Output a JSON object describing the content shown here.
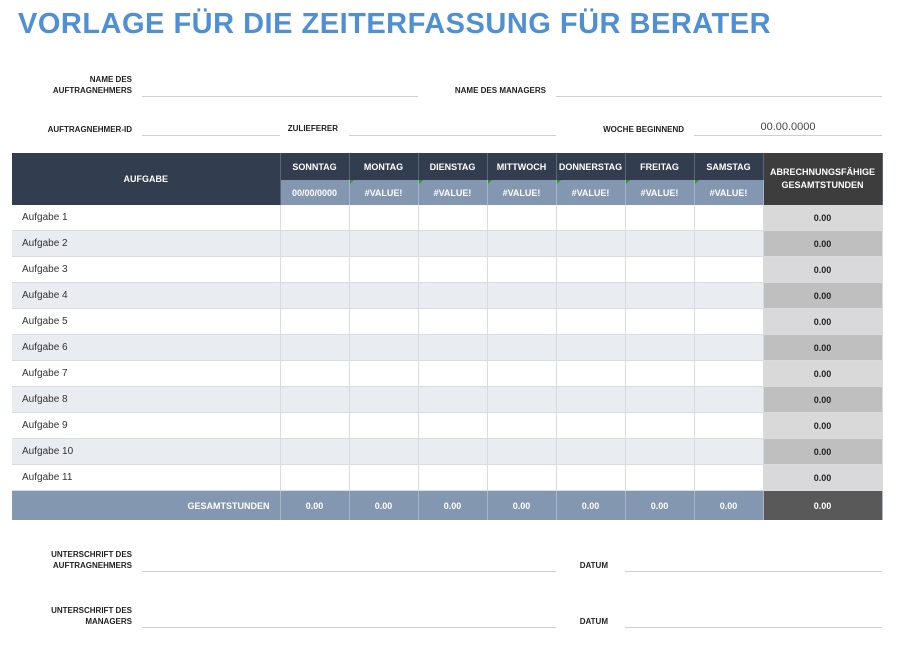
{
  "title": "VORLAGE FÜR DIE ZEITERFASSUNG FÜR BERATER",
  "fields": {
    "contractor_name_label": "NAME DES AUFTRAGNEHMERS",
    "manager_name_label": "NAME DES MANAGERS",
    "contractor_id_label": "AUFTRAGNEHMER-ID",
    "supplier_label": "ZULIEFERER",
    "week_start_label": "WOCHE BEGINNEND",
    "week_start_value": "00.00.0000"
  },
  "table": {
    "task_header": "AUFGABE",
    "total_header": "ABRECHNUNGSFÄHIGE GESAMTSTUNDEN",
    "days": [
      {
        "name": "SONNTAG",
        "date": "00/00/0000"
      },
      {
        "name": "MONTAG",
        "date": "#VALUE!"
      },
      {
        "name": "DIENSTAG",
        "date": "#VALUE!"
      },
      {
        "name": "MITTWOCH",
        "date": "#VALUE!"
      },
      {
        "name": "DONNERSTAG",
        "date": "#VALUE!"
      },
      {
        "name": "FREITAG",
        "date": "#VALUE!"
      },
      {
        "name": "SAMSTAG",
        "date": "#VALUE!"
      }
    ],
    "rows": [
      {
        "task": "Aufgabe 1",
        "total": "0.00"
      },
      {
        "task": "Aufgabe 2",
        "total": "0.00"
      },
      {
        "task": "Aufgabe 3",
        "total": "0.00"
      },
      {
        "task": "Aufgabe 4",
        "total": "0.00"
      },
      {
        "task": "Aufgabe 5",
        "total": "0.00"
      },
      {
        "task": "Aufgabe 6",
        "total": "0.00"
      },
      {
        "task": "Aufgabe 7",
        "total": "0.00"
      },
      {
        "task": "Aufgabe 8",
        "total": "0.00"
      },
      {
        "task": "Aufgabe 9",
        "total": "0.00"
      },
      {
        "task": "Aufgabe 10",
        "total": "0.00"
      },
      {
        "task": "Aufgabe 11",
        "total": "0.00"
      }
    ],
    "footer": {
      "label": "GESAMTSTUNDEN",
      "day_totals": [
        "0.00",
        "0.00",
        "0.00",
        "0.00",
        "0.00",
        "0.00",
        "0.00"
      ],
      "grand_total": "0.00"
    }
  },
  "signatures": {
    "contractor_label": "UNTERSCHRIFT DES AUFTRAGNEHMERS",
    "manager_label": "UNTERSCHRIFT DES MANAGERS",
    "date_label": "DATUM"
  }
}
